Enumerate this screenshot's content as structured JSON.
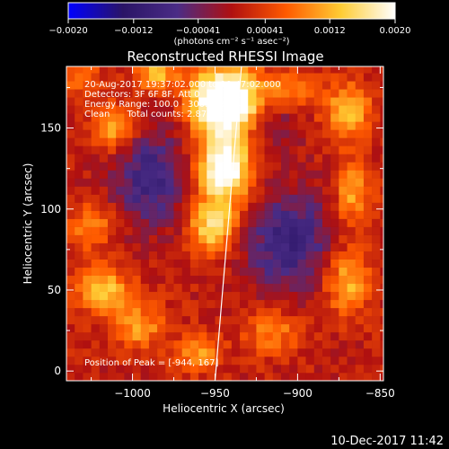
{
  "chart_data": {
    "type": "heatmap",
    "title": "Reconstructed RHESSI Image",
    "xlabel": "Heliocentric X (arcsec)",
    "ylabel": "Heliocentric Y (arcsec)",
    "xlim": [
      -1040,
      -848
    ],
    "ylim": [
      -6,
      188
    ],
    "x_ticks": [
      -1000,
      -950,
      -900,
      -850
    ],
    "x_tick_labels": [
      "−1000",
      "−950",
      "−900",
      "−850"
    ],
    "y_ticks": [
      0,
      50,
      100,
      150
    ],
    "y_tick_labels": [
      "0",
      "50",
      "100",
      "150"
    ],
    "colorbar": {
      "range": [
        -0.002,
        0.002
      ],
      "tick_values": [
        -0.002,
        -0.0012,
        -0.00041,
        0.00041,
        0.0012,
        0.002
      ],
      "tick_labels": [
        "−0.0020",
        "−0.0012",
        "−0.00041",
        "0.00041",
        "0.0012",
        "0.0020"
      ],
      "unit_label": "(photons cm⁻² s⁻¹ asec⁻²)",
      "colors": [
        "#0000ff",
        "#2a1466",
        "#4a2c86",
        "#b01010",
        "#ff5a00",
        "#ffcc33",
        "#ffffff"
      ]
    },
    "annotations": [
      "20-Aug-2017 19:37:02.000 to 19:47:02.000",
      "Detectors: 3F 6F 8F, Att 0",
      "Energy Range: 100.0 - 300.0 keV",
      "Clean      Total counts: 2.87E+04"
    ],
    "peak_label": "Position of Peak = [-944, 167]",
    "peak": [
      -944,
      167
    ],
    "limb_line": [
      [
        -950,
        -6
      ],
      [
        -934,
        188
      ]
    ],
    "sources": [
      {
        "x": -944,
        "y": 167,
        "sx": 14,
        "sy": 14,
        "amp": 0.003
      },
      {
        "x": -944,
        "y": 125,
        "sx": 11,
        "sy": 14,
        "amp": 0.0022
      },
      {
        "x": -951,
        "y": 90,
        "sx": 10,
        "sy": 12,
        "amp": 0.0015
      },
      {
        "x": -986,
        "y": 183,
        "sx": 9,
        "sy": 7,
        "amp": 0.0012
      },
      {
        "x": -1010,
        "y": 150,
        "sx": 9,
        "sy": 10,
        "amp": 0.0011
      },
      {
        "x": -1025,
        "y": 90,
        "sx": 10,
        "sy": 10,
        "amp": 0.0008
      },
      {
        "x": -1018,
        "y": 50,
        "sx": 12,
        "sy": 10,
        "amp": 0.0012
      },
      {
        "x": -995,
        "y": 25,
        "sx": 12,
        "sy": 10,
        "amp": 0.0012
      },
      {
        "x": -960,
        "y": 12,
        "sx": 10,
        "sy": 8,
        "amp": 0.0009
      },
      {
        "x": -915,
        "y": 25,
        "sx": 12,
        "sy": 10,
        "amp": 0.0008
      },
      {
        "x": -870,
        "y": 55,
        "sx": 10,
        "sy": 14,
        "amp": 0.0011
      },
      {
        "x": -866,
        "y": 110,
        "sx": 8,
        "sy": 14,
        "amp": 0.001
      },
      {
        "x": -870,
        "y": 160,
        "sx": 10,
        "sy": 12,
        "amp": 0.0012
      },
      {
        "x": -905,
        "y": 175,
        "sx": 10,
        "sy": 8,
        "amp": 0.0008
      },
      {
        "x": -1030,
        "y": 180,
        "sx": 8,
        "sy": 8,
        "amp": 0.0007
      },
      {
        "x": -990,
        "y": 120,
        "sx": 16,
        "sy": 22,
        "amp": -0.001
      },
      {
        "x": -905,
        "y": 80,
        "sx": 18,
        "sy": 22,
        "amp": -0.0011
      },
      {
        "x": -990,
        "y": 20,
        "sx": 14,
        "sy": 8,
        "amp": -0.0004
      },
      {
        "x": -915,
        "y": 150,
        "sx": 12,
        "sy": 10,
        "amp": -0.0005
      }
    ]
  },
  "footer": {
    "timestamp": "10-Dec-2017 11:42"
  }
}
